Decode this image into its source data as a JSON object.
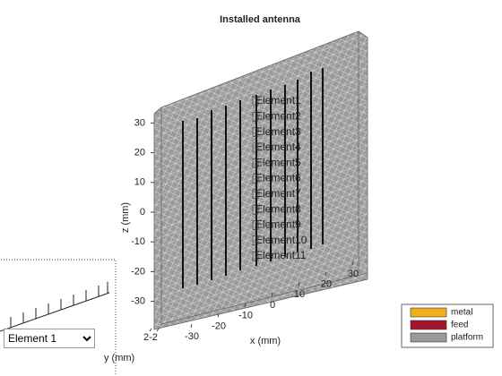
{
  "title": "Installed antenna",
  "axes": {
    "x_label": "x (mm)",
    "y_label": "y (mm)",
    "z_label": "z (mm)",
    "x_ticks": [
      -30,
      -20,
      -10,
      0,
      10,
      20,
      30
    ],
    "y_ticks": [
      2,
      -2
    ],
    "z_ticks": [
      30,
      20,
      10,
      0,
      -10,
      -20,
      -30
    ]
  },
  "element_labels": [
    "Element1",
    "Element2",
    "Element3",
    "Element4",
    "Element5",
    "Element6",
    "Element7",
    "Element8",
    "Element9",
    "Element10",
    "Element11"
  ],
  "legend": [
    {
      "name": "metal",
      "color": "#edb120"
    },
    {
      "name": "feed",
      "color": "#a2142f"
    },
    {
      "name": "platform",
      "color": "#999999"
    }
  ],
  "dropdown": {
    "value": "Element 1"
  }
}
